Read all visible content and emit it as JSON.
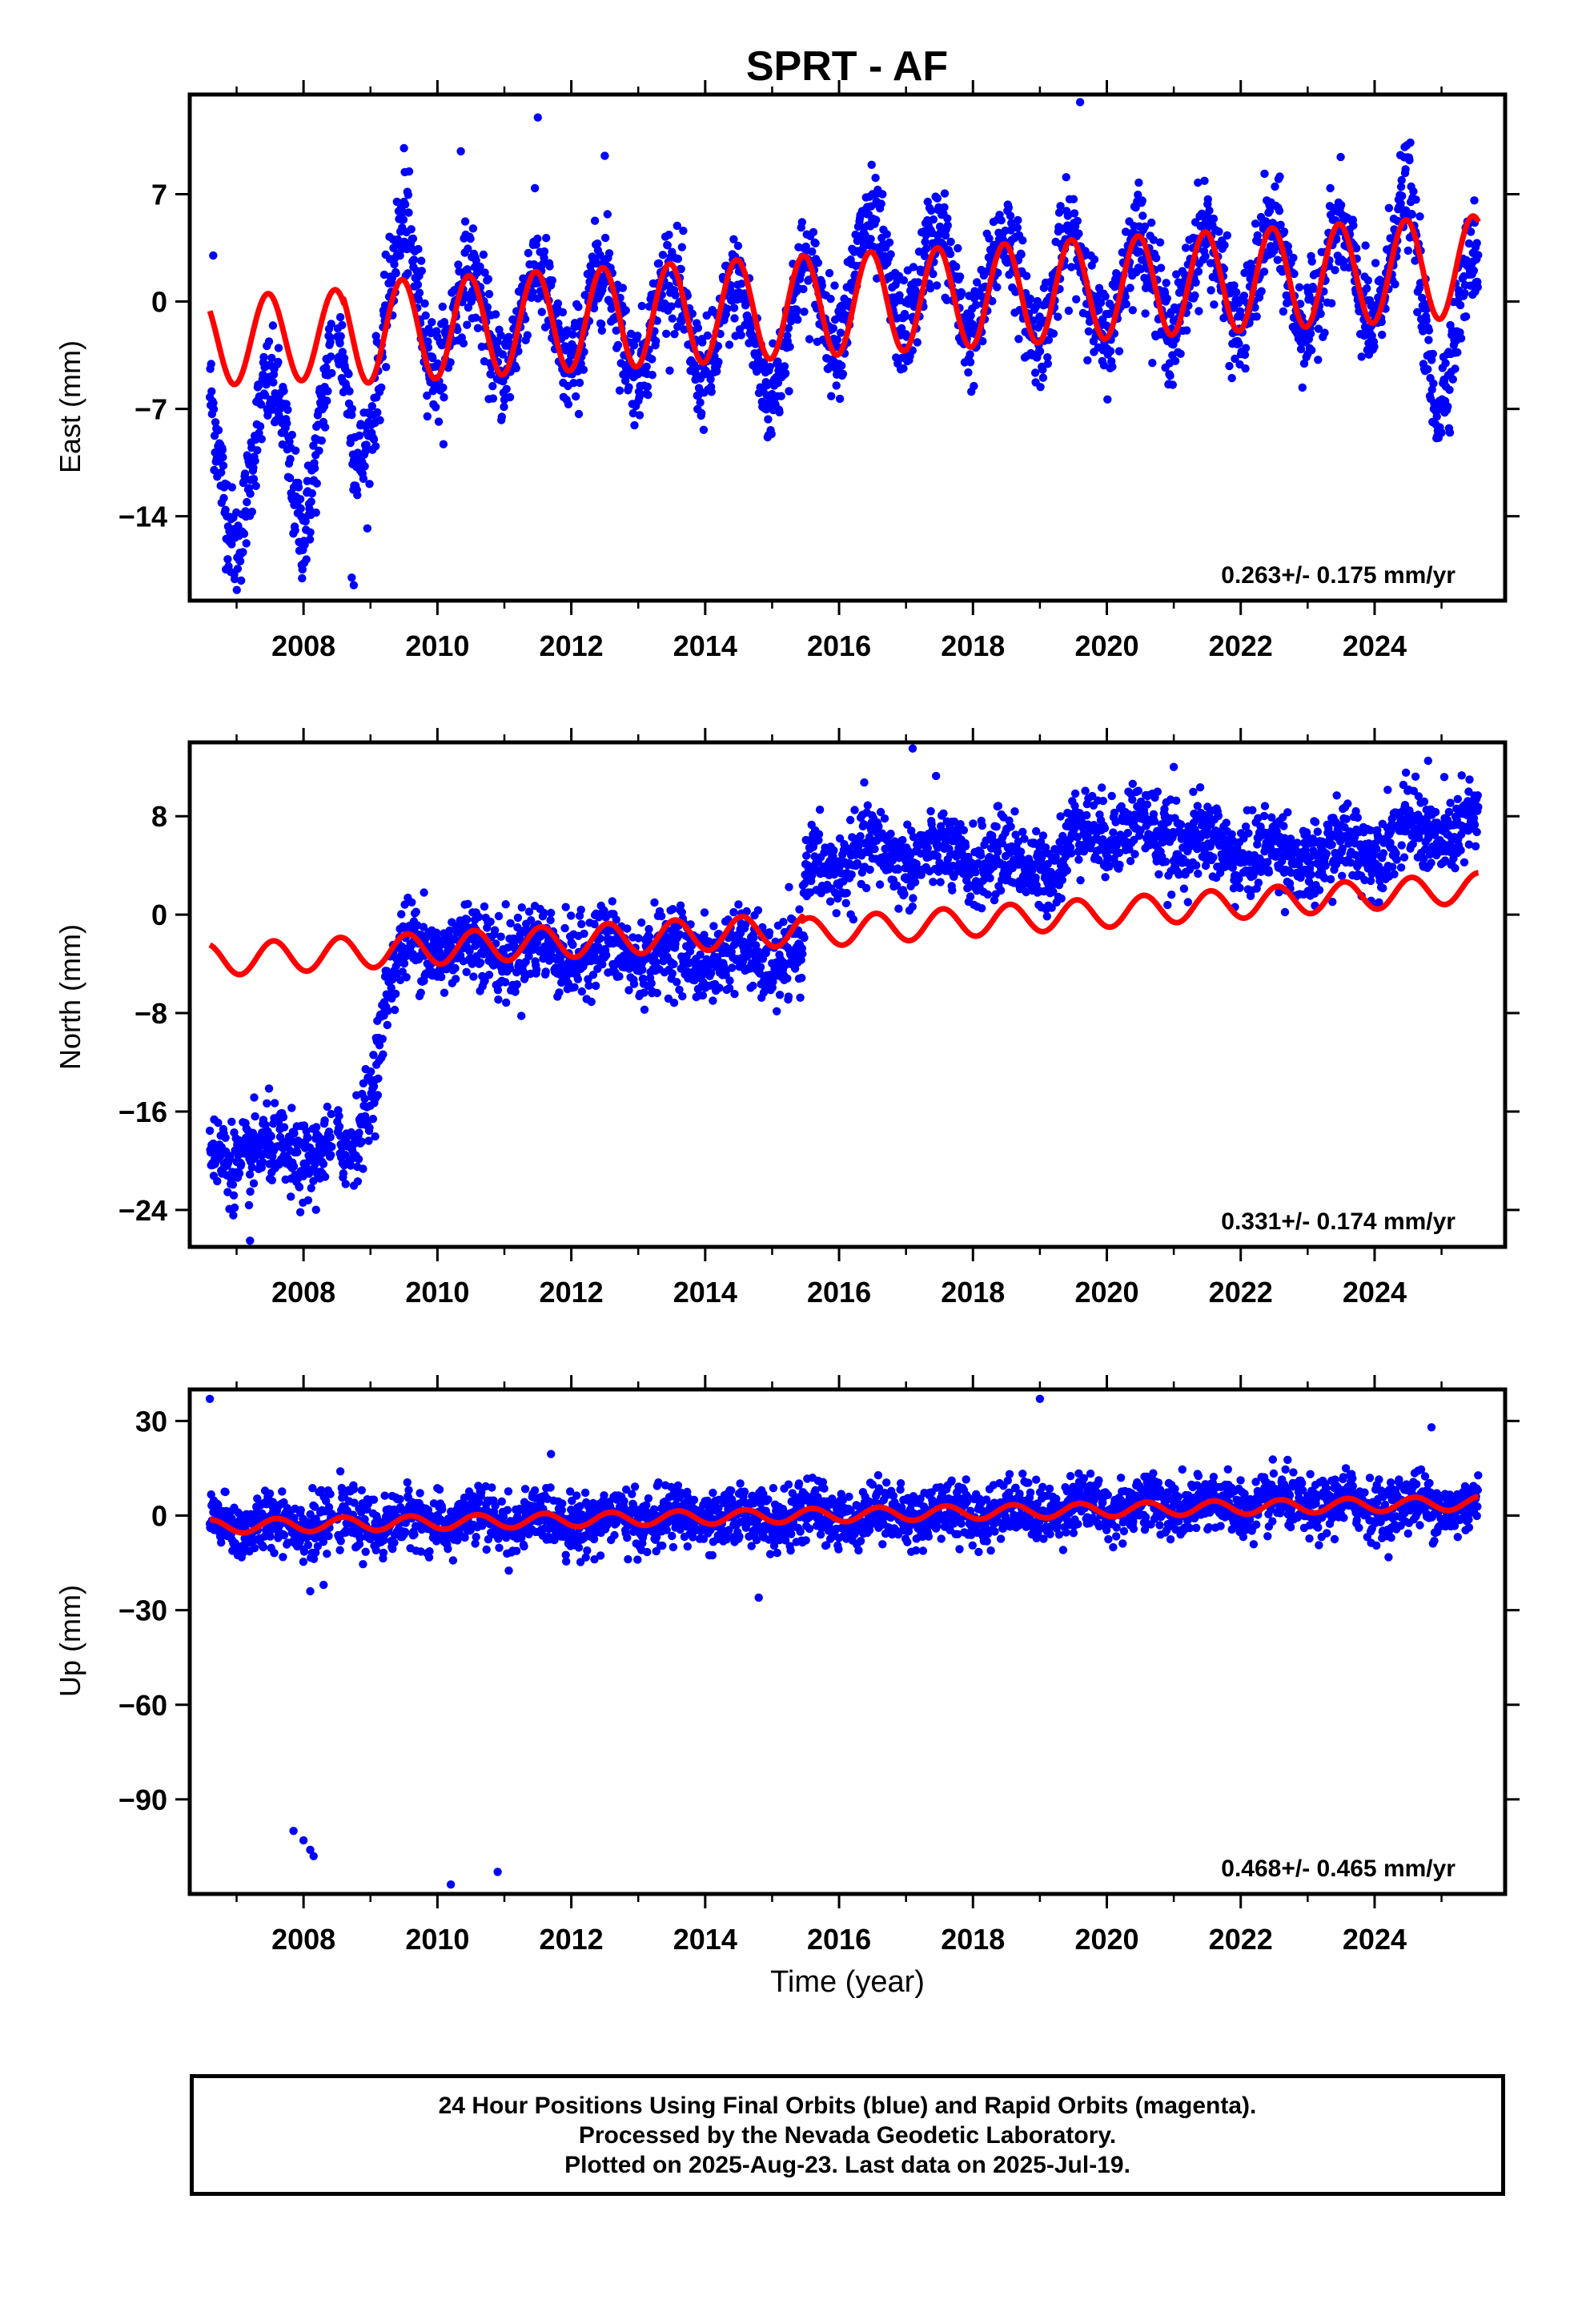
{
  "title": "SPRT - AF",
  "footer": {
    "lines": [
      "24 Hour Positions Using Final Orbits (blue) and Rapid Orbits (magenta).",
      "Processed by the Nevada Geodetic Laboratory.",
      "Plotted on 2025-Aug-23. Last data on 2025-Jul-19."
    ]
  },
  "colors": {
    "observations": "#0000ff",
    "model": "#ff0000",
    "frame": "#000000"
  },
  "chart_data": [
    {
      "type": "scatter",
      "panel": "east",
      "ylabel": "East (mm)",
      "xlabel": "",
      "rate_label": "0.263+/- 0.175 mm/yr",
      "xlim": [
        2006.3,
        2025.95
      ],
      "ylim": [
        -19.5,
        13.5
      ],
      "yticks": [
        7,
        0,
        -7,
        -14
      ],
      "ytick_labels": [
        "7",
        "0",
        "−7",
        "−14"
      ],
      "xticks": [
        2008,
        2010,
        2012,
        2014,
        2016,
        2018,
        2020,
        2022,
        2024
      ],
      "xtick_labels": [
        "2008",
        "2010",
        "2012",
        "2014",
        "2016",
        "2018",
        "2020",
        "2022",
        "2024"
      ],
      "series": [
        {
          "kind": "observations",
          "style": "dots",
          "color": "#0000ff",
          "trend": [
            [
              2006.6,
              -8
            ],
            [
              2007.0,
              -13
            ],
            [
              2007.4,
              -9
            ],
            [
              2007.7,
              -8
            ],
            [
              2008.0,
              -12
            ],
            [
              2008.5,
              -5
            ],
            [
              2008.8,
              -9
            ],
            [
              2009.1,
              -3
            ],
            [
              2009.5,
              2
            ],
            [
              2010.0,
              -1.5
            ],
            [
              2012.0,
              -1
            ],
            [
              2014.0,
              -1.5
            ],
            [
              2015.0,
              -3
            ],
            [
              2015.7,
              0
            ],
            [
              2016.3,
              2
            ],
            [
              2018.0,
              1
            ],
            [
              2020.0,
              1
            ],
            [
              2022.0,
              1.5
            ],
            [
              2024.0,
              1.5
            ],
            [
              2024.5,
              4
            ],
            [
              2024.9,
              -4
            ],
            [
              2025.1,
              -2
            ],
            [
              2025.5,
              0
            ]
          ],
          "amplitude": 3.3,
          "noise": 1.6,
          "phase_peak_year_fraction": 0.47,
          "outliers": [
            [
              2006.65,
              3
            ],
            [
              2008.75,
              -18.5
            ],
            [
              2008.72,
              -18
            ],
            [
              2009.5,
              10
            ],
            [
              2010.35,
              9.8
            ],
            [
              2011.5,
              12
            ],
            [
              2012.5,
              9.5
            ],
            [
              2019.6,
              13
            ]
          ]
        },
        {
          "kind": "model",
          "style": "line",
          "color": "#ff0000",
          "x_start": 2006.6,
          "x_end": 2025.55,
          "offset_at_start": -2.6,
          "rate_mm_per_yr": 0.263,
          "annual_amplitude": [
            3.2,
            3.2
          ],
          "phase_peak_year_fraction": 0.47,
          "segments": [
            [
              2006.6,
              2008.6,
              -2.6,
              -2.1
            ],
            [
              2008.6,
              2025.55,
              -2.1,
              2.3
            ]
          ],
          "amplitude_by_segment": [
            2.9,
            3.3
          ]
        }
      ]
    },
    {
      "type": "scatter",
      "panel": "north",
      "ylabel": "North (mm)",
      "xlabel": "",
      "rate_label": "0.331+/- 0.174 mm/yr",
      "xlim": [
        2006.3,
        2025.95
      ],
      "ylim": [
        -27,
        14
      ],
      "yticks": [
        8,
        0,
        -8,
        -16,
        -24
      ],
      "ytick_labels": [
        "8",
        "0",
        "−8",
        "−16",
        "−24"
      ],
      "xticks": [
        2008,
        2010,
        2012,
        2014,
        2016,
        2018,
        2020,
        2022,
        2024
      ],
      "xtick_labels": [
        "2008",
        "2010",
        "2012",
        "2014",
        "2016",
        "2018",
        "2020",
        "2022",
        "2024"
      ],
      "series": [
        {
          "kind": "observations",
          "style": "dots",
          "color": "#0000ff",
          "trend": [
            [
              2006.6,
              -19.5
            ],
            [
              2008.7,
              -19.5
            ],
            [
              2009.0,
              -14
            ],
            [
              2009.3,
              -5
            ],
            [
              2009.6,
              -2.5
            ],
            [
              2012.0,
              -3
            ],
            [
              2015.45,
              -3.5
            ],
            [
              2015.5,
              3.5
            ],
            [
              2016.5,
              5
            ],
            [
              2018.0,
              4.5
            ],
            [
              2019.3,
              4
            ],
            [
              2019.6,
              7
            ],
            [
              2020.5,
              7
            ],
            [
              2021.5,
              5.5
            ],
            [
              2023.0,
              4.5
            ],
            [
              2024.5,
              6.5
            ],
            [
              2025.5,
              7
            ]
          ],
          "amplitude": 0.9,
          "noise": 1.6,
          "phase_peak_year_fraction": 0.5,
          "outliers": [
            [
              2017.1,
              13.5
            ],
            [
              2024.8,
              12.5
            ],
            [
              2007.2,
              -26.5
            ],
            [
              2009.8,
              1.8
            ],
            [
              2021.0,
              12
            ]
          ]
        },
        {
          "kind": "model",
          "style": "line",
          "color": "#ff0000",
          "x_start": 2006.6,
          "x_end": 2025.55,
          "offset_at_start": -3.7,
          "rate_mm_per_yr": 0.331,
          "annual_amplitude": [
            1.2,
            1.2
          ],
          "phase_peak_year_fraction": 0.55,
          "segments": [
            [
              2006.6,
              2015.45,
              -3.7,
              -1.2
            ],
            [
              2015.45,
              2025.55,
              -1.5,
              2.2
            ]
          ],
          "amplitude_by_segment": [
            1.3,
            1.2
          ]
        }
      ]
    },
    {
      "type": "scatter",
      "panel": "up",
      "ylabel": "Up (mm)",
      "xlabel": "Time (year)",
      "rate_label": "0.468+/- 0.465 mm/yr",
      "xlim": [
        2006.3,
        2025.95
      ],
      "ylim": [
        -120,
        40
      ],
      "yticks": [
        30,
        0,
        -30,
        -60,
        -90
      ],
      "ytick_labels": [
        "30",
        "0",
        "−30",
        "−60",
        "−90"
      ],
      "xticks": [
        2008,
        2010,
        2012,
        2014,
        2016,
        2018,
        2020,
        2022,
        2024
      ],
      "xtick_labels": [
        "2008",
        "2010",
        "2012",
        "2014",
        "2016",
        "2018",
        "2020",
        "2022",
        "2024"
      ],
      "series": [
        {
          "kind": "observations",
          "style": "dots",
          "color": "#0000ff",
          "trend": [
            [
              2006.6,
              -3
            ],
            [
              2010.0,
              -2
            ],
            [
              2014.0,
              -1
            ],
            [
              2018.0,
              1
            ],
            [
              2020.0,
              3
            ],
            [
              2024.0,
              3.5
            ],
            [
              2025.5,
              3
            ]
          ],
          "amplitude": 2.2,
          "noise": 4.5,
          "phase_peak_year_fraction": 0.6,
          "outliers": [
            [
              2006.6,
              37
            ],
            [
              2019.0,
              37
            ],
            [
              2007.85,
              -100
            ],
            [
              2008.0,
              -103
            ],
            [
              2008.1,
              -106
            ],
            [
              2008.15,
              -108
            ],
            [
              2010.2,
              -117
            ],
            [
              2010.9,
              -113
            ],
            [
              2008.1,
              -24
            ],
            [
              2008.3,
              -22
            ],
            [
              2014.8,
              -26
            ],
            [
              2024.85,
              28
            ]
          ]
        },
        {
          "kind": "model",
          "style": "line",
          "color": "#ff0000",
          "x_start": 2006.6,
          "x_end": 2025.55,
          "offset_at_start": -3.5,
          "rate_mm_per_yr": 0.468,
          "annual_amplitude": [
            2.2,
            2.2
          ],
          "phase_peak_year_fraction": 0.6,
          "segments": [
            [
              2006.6,
              2025.55,
              -3.5,
              4.0
            ]
          ],
          "amplitude_by_segment": [
            2.2
          ]
        }
      ]
    }
  ]
}
